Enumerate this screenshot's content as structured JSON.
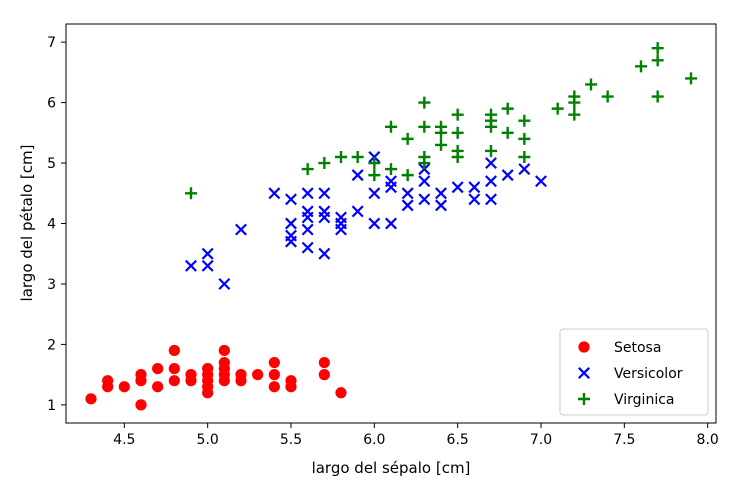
{
  "chart_data": {
    "type": "scatter",
    "xlabel": "largo del sépalo [cm]",
    "ylabel": "largo del pétalo [cm]",
    "xlim": [
      4.15,
      8.05
    ],
    "ylim": [
      0.7,
      7.3
    ],
    "xticks": [
      "4.5",
      "5.0",
      "5.5",
      "6.0",
      "6.5",
      "7.0",
      "7.5",
      "8.0"
    ],
    "yticks": [
      "1",
      "2",
      "3",
      "4",
      "5",
      "6",
      "7"
    ],
    "grid": false,
    "legend_position": "lower-right",
    "series": [
      {
        "name": "Setosa",
        "marker": "circle",
        "color": "#ff0000",
        "points": [
          [
            4.3,
            1.1
          ],
          [
            4.4,
            1.4
          ],
          [
            4.4,
            1.3
          ],
          [
            4.5,
            1.3
          ],
          [
            4.6,
            1.0
          ],
          [
            4.6,
            1.4
          ],
          [
            4.6,
            1.5
          ],
          [
            4.7,
            1.3
          ],
          [
            4.7,
            1.6
          ],
          [
            4.8,
            1.4
          ],
          [
            4.8,
            1.6
          ],
          [
            4.8,
            1.9
          ],
          [
            4.9,
            1.4
          ],
          [
            4.9,
            1.5
          ],
          [
            5.0,
            1.2
          ],
          [
            5.0,
            1.3
          ],
          [
            5.0,
            1.4
          ],
          [
            5.0,
            1.5
          ],
          [
            5.0,
            1.6
          ],
          [
            5.1,
            1.4
          ],
          [
            5.1,
            1.5
          ],
          [
            5.1,
            1.7
          ],
          [
            5.1,
            1.9
          ],
          [
            5.1,
            1.6
          ],
          [
            5.2,
            1.4
          ],
          [
            5.2,
            1.5
          ],
          [
            5.3,
            1.5
          ],
          [
            5.4,
            1.3
          ],
          [
            5.4,
            1.5
          ],
          [
            5.4,
            1.7
          ],
          [
            5.5,
            1.3
          ],
          [
            5.5,
            1.4
          ],
          [
            5.7,
            1.5
          ],
          [
            5.7,
            1.7
          ],
          [
            5.8,
            1.2
          ]
        ]
      },
      {
        "name": "Versicolor",
        "marker": "x",
        "color": "#0000ff",
        "points": [
          [
            4.9,
            3.3
          ],
          [
            5.0,
            3.5
          ],
          [
            5.0,
            3.3
          ],
          [
            5.1,
            3.0
          ],
          [
            5.2,
            3.9
          ],
          [
            5.4,
            4.5
          ],
          [
            5.5,
            3.7
          ],
          [
            5.5,
            3.8
          ],
          [
            5.5,
            4.0
          ],
          [
            5.5,
            4.4
          ],
          [
            5.6,
            3.6
          ],
          [
            5.6,
            3.9
          ],
          [
            5.6,
            4.1
          ],
          [
            5.6,
            4.2
          ],
          [
            5.6,
            4.5
          ],
          [
            5.7,
            3.5
          ],
          [
            5.7,
            4.1
          ],
          [
            5.7,
            4.2
          ],
          [
            5.7,
            4.5
          ],
          [
            5.8,
            3.9
          ],
          [
            5.8,
            4.0
          ],
          [
            5.8,
            4.1
          ],
          [
            5.9,
            4.2
          ],
          [
            5.9,
            4.8
          ],
          [
            6.0,
            4.0
          ],
          [
            6.0,
            4.5
          ],
          [
            6.0,
            5.1
          ],
          [
            6.1,
            4.0
          ],
          [
            6.1,
            4.6
          ],
          [
            6.1,
            4.7
          ],
          [
            6.2,
            4.3
          ],
          [
            6.2,
            4.5
          ],
          [
            6.3,
            4.4
          ],
          [
            6.3,
            4.7
          ],
          [
            6.3,
            4.9
          ],
          [
            6.4,
            4.3
          ],
          [
            6.4,
            4.5
          ],
          [
            6.5,
            4.6
          ],
          [
            6.6,
            4.4
          ],
          [
            6.6,
            4.6
          ],
          [
            6.7,
            4.4
          ],
          [
            6.7,
            4.7
          ],
          [
            6.7,
            5.0
          ],
          [
            6.8,
            4.8
          ],
          [
            6.9,
            4.9
          ],
          [
            7.0,
            4.7
          ]
        ]
      },
      {
        "name": "Virginica",
        "marker": "plus",
        "color": "#008000",
        "points": [
          [
            4.9,
            4.5
          ],
          [
            5.6,
            4.9
          ],
          [
            5.7,
            5.0
          ],
          [
            5.8,
            5.1
          ],
          [
            5.9,
            5.1
          ],
          [
            6.0,
            4.8
          ],
          [
            6.0,
            5.0
          ],
          [
            6.1,
            4.9
          ],
          [
            6.1,
            5.6
          ],
          [
            6.2,
            4.8
          ],
          [
            6.2,
            5.4
          ],
          [
            6.3,
            5.0
          ],
          [
            6.3,
            5.1
          ],
          [
            6.3,
            5.6
          ],
          [
            6.3,
            6.0
          ],
          [
            6.4,
            5.3
          ],
          [
            6.4,
            5.5
          ],
          [
            6.4,
            5.6
          ],
          [
            6.5,
            5.1
          ],
          [
            6.5,
            5.2
          ],
          [
            6.5,
            5.5
          ],
          [
            6.5,
            5.8
          ],
          [
            6.7,
            5.2
          ],
          [
            6.7,
            5.6
          ],
          [
            6.7,
            5.7
          ],
          [
            6.7,
            5.8
          ],
          [
            6.8,
            5.5
          ],
          [
            6.8,
            5.9
          ],
          [
            6.9,
            5.1
          ],
          [
            6.9,
            5.4
          ],
          [
            6.9,
            5.7
          ],
          [
            7.1,
            5.9
          ],
          [
            7.2,
            5.8
          ],
          [
            7.2,
            6.0
          ],
          [
            7.2,
            6.1
          ],
          [
            7.3,
            6.3
          ],
          [
            7.4,
            6.1
          ],
          [
            7.6,
            6.6
          ],
          [
            7.7,
            6.1
          ],
          [
            7.7,
            6.7
          ],
          [
            7.7,
            6.9
          ],
          [
            7.9,
            6.4
          ]
        ]
      }
    ]
  }
}
